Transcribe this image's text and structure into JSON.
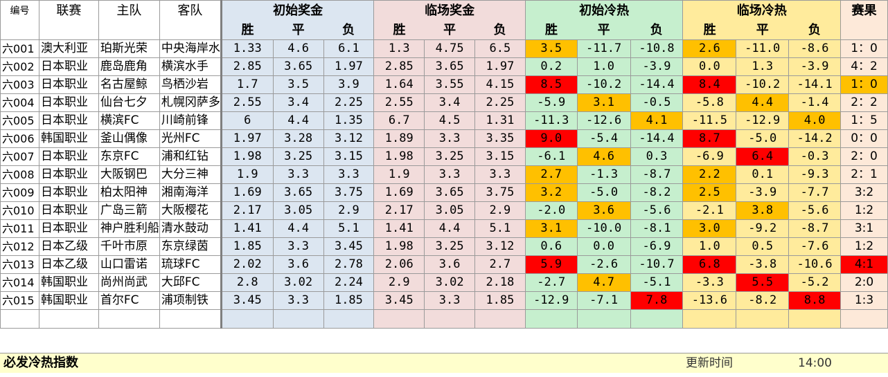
{
  "headers": {
    "id": "编号",
    "league": "联赛",
    "home": "主队",
    "away": "客队",
    "initial_odds": "初始奖金",
    "final_odds": "临场奖金",
    "initial_heat": "初始冷热",
    "final_heat": "临场冷热",
    "result": "赛果",
    "win": "胜",
    "draw": "平",
    "loss": "负"
  },
  "rows": [
    {
      "id": "六001",
      "league": "澳大利亚",
      "home": "珀斯光荣",
      "away": "中央海岸水",
      "io": [
        "1.33",
        "4.6",
        "6.1"
      ],
      "fo": [
        "1.3",
        "4.75",
        "6.5"
      ],
      "ih": [
        "3.5",
        "-11.7",
        "-10.8"
      ],
      "fh": [
        "2.6",
        "-11.0",
        "-8.6"
      ],
      "result": "1：0"
    },
    {
      "id": "六002",
      "league": "日本职业",
      "home": "鹿岛鹿角",
      "away": "横滨水手",
      "io": [
        "2.85",
        "3.65",
        "1.97"
      ],
      "fo": [
        "2.85",
        "3.65",
        "1.97"
      ],
      "ih": [
        "0.2",
        "1.0",
        "-3.9"
      ],
      "fh": [
        "0.0",
        "1.3",
        "-3.9"
      ],
      "result": "4：2"
    },
    {
      "id": "六003",
      "league": "日本职业",
      "home": "名古屋鲸",
      "away": "鸟栖沙岩",
      "io": [
        "1.7",
        "3.5",
        "3.9"
      ],
      "fo": [
        "1.64",
        "3.55",
        "4.15"
      ],
      "ih": [
        "8.5",
        "-10.2",
        "-14.4"
      ],
      "fh": [
        "8.4",
        "-10.2",
        "-14.1"
      ],
      "result": "1：0"
    },
    {
      "id": "六004",
      "league": "日本职业",
      "home": "仙台七夕",
      "away": "札幌冈萨多",
      "io": [
        "2.55",
        "3.4",
        "2.25"
      ],
      "fo": [
        "2.55",
        "3.4",
        "2.25"
      ],
      "ih": [
        "-5.9",
        "3.1",
        "-0.5"
      ],
      "fh": [
        "-5.8",
        "4.4",
        "-1.4"
      ],
      "result": "2：2"
    },
    {
      "id": "六005",
      "league": "日本职业",
      "home": "横滨FC",
      "away": "川崎前锋",
      "io": [
        "6",
        "4.4",
        "1.35"
      ],
      "fo": [
        "6.7",
        "4.5",
        "1.31"
      ],
      "ih": [
        "-11.3",
        "-12.6",
        "4.1"
      ],
      "fh": [
        "-11.5",
        "-12.9",
        "4.0"
      ],
      "result": "1：5"
    },
    {
      "id": "六006",
      "league": "韩国职业",
      "home": "釜山偶像",
      "away": "光州FC",
      "io": [
        "1.97",
        "3.28",
        "3.12"
      ],
      "fo": [
        "1.89",
        "3.3",
        "3.35"
      ],
      "ih": [
        "9.0",
        "-5.4",
        "-14.4"
      ],
      "fh": [
        "8.7",
        "-5.0",
        "-14.2"
      ],
      "result": "0：0"
    },
    {
      "id": "六007",
      "league": "日本职业",
      "home": "东京FC",
      "away": "浦和红钻",
      "io": [
        "1.98",
        "3.25",
        "3.15"
      ],
      "fo": [
        "1.98",
        "3.25",
        "3.15"
      ],
      "ih": [
        "-6.1",
        "4.6",
        "0.3"
      ],
      "fh": [
        "-6.9",
        "6.4",
        "-0.3"
      ],
      "result": "2：0"
    },
    {
      "id": "六008",
      "league": "日本职业",
      "home": "大阪钢巴",
      "away": "大分三神",
      "io": [
        "1.9",
        "3.3",
        "3.3"
      ],
      "fo": [
        "1.9",
        "3.3",
        "3.3"
      ],
      "ih": [
        "2.7",
        "-1.3",
        "-8.7"
      ],
      "fh": [
        "2.2",
        "0.1",
        "-9.3"
      ],
      "result": "2：1"
    },
    {
      "id": "六009",
      "league": "日本职业",
      "home": "柏太阳神",
      "away": "湘南海洋",
      "io": [
        "1.69",
        "3.65",
        "3.75"
      ],
      "fo": [
        "1.69",
        "3.65",
        "3.75"
      ],
      "ih": [
        "3.2",
        "-5.0",
        "-8.2"
      ],
      "fh": [
        "2.5",
        "-3.9",
        "-7.7"
      ],
      "result": "3:2"
    },
    {
      "id": "六010",
      "league": "日本职业",
      "home": "广岛三箭",
      "away": "大阪樱花",
      "io": [
        "2.17",
        "3.05",
        "2.9"
      ],
      "fo": [
        "2.17",
        "3.05",
        "2.9"
      ],
      "ih": [
        "-2.0",
        "3.6",
        "-5.6"
      ],
      "fh": [
        "-2.1",
        "3.8",
        "-5.6"
      ],
      "result": "1:2"
    },
    {
      "id": "六011",
      "league": "日本职业",
      "home": "神户胜利船",
      "away": "清水鼓动",
      "io": [
        "1.41",
        "4.4",
        "5.1"
      ],
      "fo": [
        "1.41",
        "4.4",
        "5.1"
      ],
      "ih": [
        "3.1",
        "-10.0",
        "-8.1"
      ],
      "fh": [
        "3.0",
        "-9.2",
        "-8.7"
      ],
      "result": "3:1"
    },
    {
      "id": "六012",
      "league": "日本乙级",
      "home": "千叶市原",
      "away": "东京绿茵",
      "io": [
        "1.85",
        "3.3",
        "3.45"
      ],
      "fo": [
        "1.98",
        "3.25",
        "3.12"
      ],
      "ih": [
        "0.6",
        "0.0",
        "-6.9"
      ],
      "fh": [
        "1.0",
        "0.5",
        "-7.6"
      ],
      "result": "1:2"
    },
    {
      "id": "六013",
      "league": "日本乙级",
      "home": "山口雷诺",
      "away": "琉球FC",
      "io": [
        "2.02",
        "3.6",
        "2.78"
      ],
      "fo": [
        "2.06",
        "3.6",
        "2.7"
      ],
      "ih": [
        "5.9",
        "-2.6",
        "-10.7"
      ],
      "fh": [
        "6.8",
        "-3.8",
        "-10.6"
      ],
      "result": "4:1"
    },
    {
      "id": "六014",
      "league": "韩国职业",
      "home": "尚州尚武",
      "away": "大邱FC",
      "io": [
        "2.8",
        "3.02",
        "2.24"
      ],
      "fo": [
        "2.9",
        "3.02",
        "2.18"
      ],
      "ih": [
        "-2.7",
        "4.7",
        "-5.1"
      ],
      "fh": [
        "-3.3",
        "5.5",
        "-5.2"
      ],
      "result": "2:0"
    },
    {
      "id": "六015",
      "league": "韩国职业",
      "home": "首尔FC",
      "away": "浦项制铁",
      "io": [
        "3.45",
        "3.3",
        "1.85"
      ],
      "fo": [
        "3.45",
        "3.3",
        "1.85"
      ],
      "ih": [
        "-12.9",
        "-7.1",
        "7.8"
      ],
      "fh": [
        "-13.6",
        "-8.2",
        "8.8"
      ],
      "result": "1:3"
    }
  ],
  "highlights": {
    "ih": [
      [
        "o",
        "",
        ""
      ],
      [
        "",
        "",
        ""
      ],
      [
        "r",
        "",
        ""
      ],
      [
        "",
        "o",
        ""
      ],
      [
        "",
        "",
        "o"
      ],
      [
        "r",
        "",
        ""
      ],
      [
        "",
        "o",
        ""
      ],
      [
        "o",
        "",
        ""
      ],
      [
        "o",
        "",
        ""
      ],
      [
        "",
        "o",
        ""
      ],
      [
        "o",
        "",
        ""
      ],
      [
        "",
        "",
        ""
      ],
      [
        "r",
        "",
        ""
      ],
      [
        "",
        "o",
        ""
      ],
      [
        "",
        "",
        "r"
      ]
    ],
    "fh": [
      [
        "o",
        "",
        ""
      ],
      [
        "",
        "",
        ""
      ],
      [
        "r",
        "",
        ""
      ],
      [
        "",
        "o",
        ""
      ],
      [
        "",
        "",
        "o"
      ],
      [
        "r",
        "",
        ""
      ],
      [
        "",
        "r",
        ""
      ],
      [
        "o",
        "",
        ""
      ],
      [
        "o",
        "",
        ""
      ],
      [
        "",
        "o",
        ""
      ],
      [
        "o",
        "",
        ""
      ],
      [
        "",
        "",
        ""
      ],
      [
        "r",
        "",
        ""
      ],
      [
        "",
        "r",
        ""
      ],
      [
        "",
        "",
        "r"
      ]
    ],
    "result": [
      "",
      "",
      "o",
      "",
      "",
      "",
      "",
      "",
      "",
      "",
      "",
      "",
      "r",
      "",
      ""
    ],
    "colors": {
      "orange": "#ffc000",
      "red": "#ff0000"
    }
  },
  "footer": {
    "title": "必发冷热指数",
    "update_label": "更新时间",
    "update_time": "14:00"
  }
}
